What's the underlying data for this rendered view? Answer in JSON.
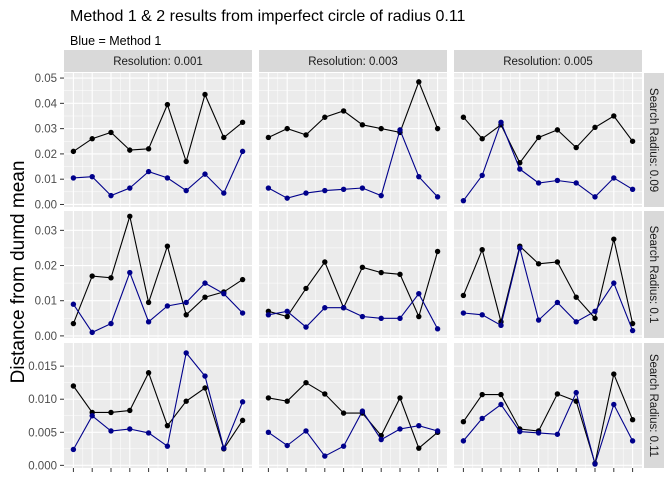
{
  "chart_data": {
    "type": "line",
    "title": "Method 1 & 2 results from imperfect circle of radius 0.11",
    "subtitle": "Blue = Method 1",
    "ylabel": "Distance from dumd mean",
    "xlabel": "",
    "colors": {
      "method1": "#00008B",
      "method2": "#000000",
      "panel_bg": "#EBEBEB",
      "strip_bg": "#D9D9D9",
      "grid": "#FFFFFF"
    },
    "col_facets": [
      "Resolution: 0.001",
      "Resolution: 0.003",
      "Resolution: 0.005"
    ],
    "row_facets": [
      {
        "label": "Search Radius: 0.09",
        "ylim": [
          -0.001,
          0.052
        ],
        "yticks": [
          0.0,
          0.01,
          0.02,
          0.03,
          0.04,
          0.05
        ],
        "yticklabels": [
          "0.00",
          "0.01",
          "0.02",
          "0.03",
          "0.04",
          "0.05"
        ]
      },
      {
        "label": "Search Radius: 0.1",
        "ylim": [
          -0.0006,
          0.0355
        ],
        "yticks": [
          0.0,
          0.01,
          0.02,
          0.03
        ],
        "yticklabels": [
          "0.00",
          "0.01",
          "0.02",
          "0.03"
        ]
      },
      {
        "label": "Search Radius: 0.11",
        "ylim": [
          -0.0004,
          0.0185
        ],
        "yticks": [
          0.0,
          0.005,
          0.01,
          0.015
        ],
        "yticklabels": [
          "0.000",
          "0.005",
          "0.010",
          "0.015"
        ]
      }
    ],
    "x": [
      1,
      2,
      3,
      4,
      5,
      6,
      7,
      8,
      9,
      10
    ],
    "xlim": [
      0.5,
      10.5
    ],
    "panels": [
      [
        {
          "method2": [
            0.021,
            0.026,
            0.0285,
            0.0215,
            0.022,
            0.0395,
            0.017,
            0.0435,
            0.0265,
            0.0325
          ],
          "method1": [
            0.0105,
            0.011,
            0.0035,
            0.0065,
            0.013,
            0.0105,
            0.0055,
            0.012,
            0.0045,
            0.021
          ]
        },
        {
          "method2": [
            0.0265,
            0.03,
            0.0275,
            0.0345,
            0.037,
            0.0315,
            0.03,
            0.0285,
            0.0485,
            0.03
          ],
          "method1": [
            0.0065,
            0.0025,
            0.0045,
            0.0055,
            0.006,
            0.0065,
            0.0035,
            0.0295,
            0.011,
            0.003
          ]
        },
        {
          "method2": [
            0.0345,
            0.026,
            0.0315,
            0.0165,
            0.0265,
            0.0295,
            0.0225,
            0.0305,
            0.035,
            0.025
          ],
          "method1": [
            0.0015,
            0.0115,
            0.0325,
            0.014,
            0.0085,
            0.0095,
            0.0085,
            0.003,
            0.0105,
            0.006
          ]
        }
      ],
      [
        {
          "method2": [
            0.0035,
            0.017,
            0.0165,
            0.034,
            0.0095,
            0.0255,
            0.006,
            0.011,
            0.0125,
            0.016
          ],
          "method1": [
            0.009,
            0.001,
            0.0035,
            0.018,
            0.004,
            0.0085,
            0.0095,
            0.015,
            0.012,
            0.0065
          ]
        },
        {
          "method2": [
            0.007,
            0.0055,
            0.0135,
            0.021,
            0.008,
            0.0195,
            0.018,
            0.0175,
            0.0055,
            0.024
          ],
          "method1": [
            0.006,
            0.007,
            0.0025,
            0.008,
            0.008,
            0.0055,
            0.005,
            0.005,
            0.012,
            0.002
          ]
        },
        {
          "method2": [
            0.0115,
            0.0245,
            0.004,
            0.0255,
            0.0205,
            0.021,
            0.011,
            0.005,
            0.0275,
            0.0035
          ],
          "method1": [
            0.0065,
            0.006,
            0.003,
            0.025,
            0.0045,
            0.0095,
            0.004,
            0.007,
            0.015,
            0.0015
          ]
        }
      ],
      [
        {
          "method2": [
            0.012,
            0.008,
            0.008,
            0.0083,
            0.014,
            0.006,
            0.0097,
            0.0117,
            0.0025,
            0.0068
          ],
          "method1": [
            0.0024,
            0.0075,
            0.0052,
            0.0055,
            0.0049,
            0.0029,
            0.017,
            0.0135,
            0.0026,
            0.0096
          ]
        },
        {
          "method2": [
            0.0102,
            0.0097,
            0.0125,
            0.0108,
            0.0079,
            0.0079,
            0.0045,
            0.0102,
            0.0026,
            0.005
          ],
          "method1": [
            0.005,
            0.003,
            0.0052,
            0.0014,
            0.0029,
            0.0082,
            0.0039,
            0.0055,
            0.006,
            0.0052
          ]
        },
        {
          "method2": [
            0.0066,
            0.0107,
            0.0107,
            0.0055,
            0.0052,
            0.0108,
            0.0097,
            0.0003,
            0.0138,
            0.0069
          ],
          "method1": [
            0.0037,
            0.0071,
            0.0092,
            0.0051,
            0.0049,
            0.0047,
            0.011,
            0.0002,
            0.0092,
            0.0037
          ]
        }
      ]
    ]
  }
}
